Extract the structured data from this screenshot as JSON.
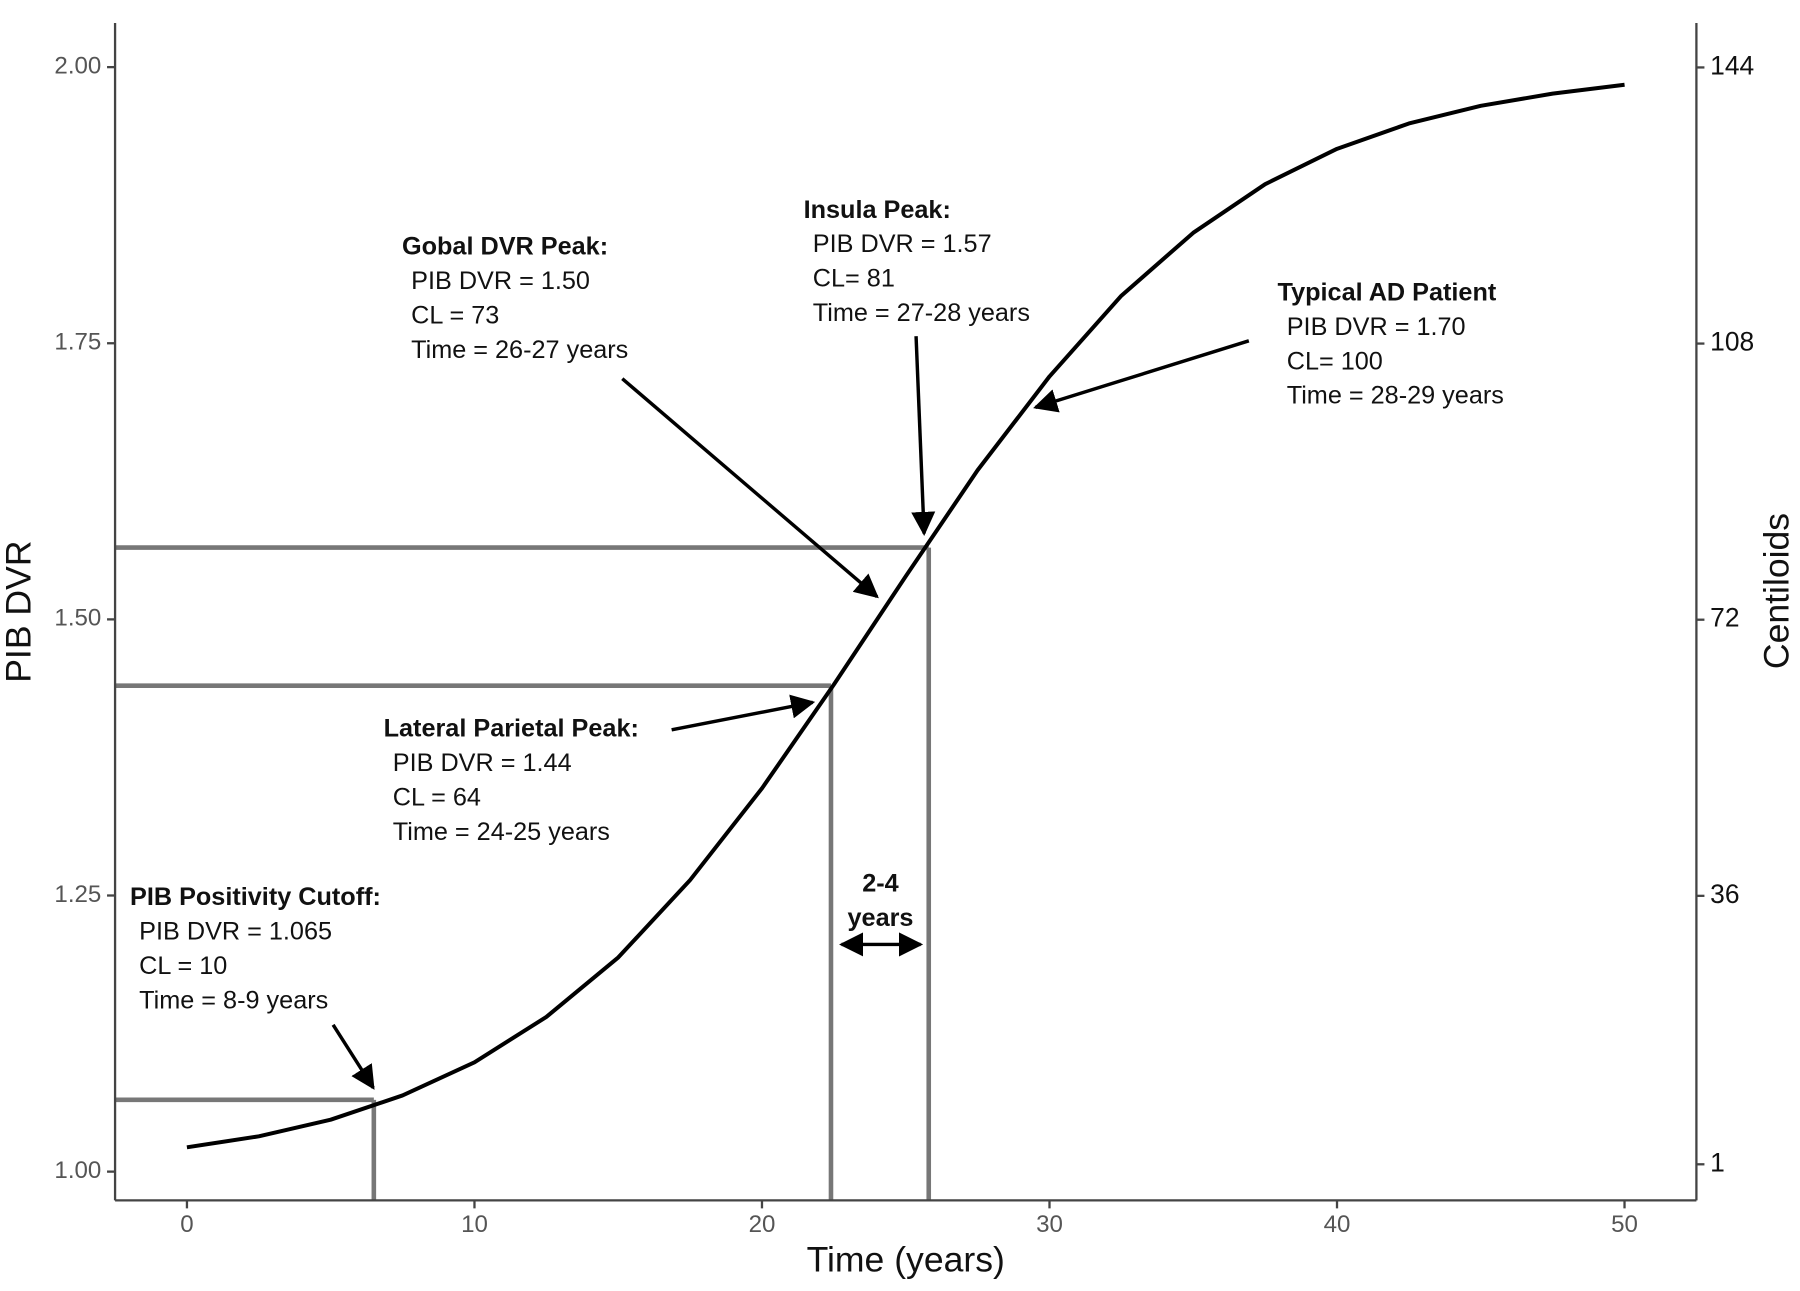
{
  "chart_data": {
    "type": "line",
    "x_label": "Time (years)",
    "y_label": "PIB DVR",
    "y2_label": "Centiloids",
    "x": [
      0,
      2.5,
      5,
      7.5,
      10,
      12.5,
      15,
      17.5,
      20,
      22.5,
      25,
      27.5,
      30,
      32.5,
      35,
      37.5,
      40,
      42.5,
      45,
      47.5,
      50
    ],
    "values": [
      1.022,
      1.032,
      1.047,
      1.069,
      1.099,
      1.14,
      1.194,
      1.264,
      1.347,
      1.441,
      1.539,
      1.635,
      1.72,
      1.793,
      1.85,
      1.894,
      1.926,
      1.949,
      1.965,
      1.976,
      1.984
    ],
    "color": "#000000",
    "xlim": [
      -2.5,
      52.5
    ],
    "xticks": [
      0,
      10,
      20,
      30,
      40,
      50
    ],
    "ylim": [
      0.974,
      2.04
    ],
    "yticks": [
      {
        "value": 1.0,
        "label": "1.00"
      },
      1.25,
      {
        "value": 1.5,
        "label": "1.50"
      },
      1.75,
      {
        "value": 2.0,
        "label": "2.00"
      }
    ],
    "y2lim": [
      -3.7,
      149.8
    ],
    "y2ticks": [
      1,
      36,
      72,
      108,
      144
    ],
    "reference_points": [
      {
        "x": 6.5,
        "y": 1.065
      },
      {
        "x": 22.4,
        "y": 1.44
      },
      {
        "x": 25.8,
        "y": 1.565
      }
    ],
    "reference_color": "#777777",
    "annotations": [
      {
        "lines": [
          "PIB Positivity Cutoff:",
          "PIB DVR = 1.065",
          "CL = 10",
          "Time = 8-9 years"
        ]
      },
      {
        "lines": [
          "Lateral Parietal Peak:",
          "PIB DVR = 1.44",
          "CL = 64",
          "Time = 24-25 years"
        ]
      },
      {
        "lines": [
          "Gobal DVR Peak:",
          "PIB DVR = 1.50",
          "CL = 73",
          "Time = 26-27 years"
        ]
      },
      {
        "lines": [
          "Insula Peak:",
          "PIB DVR = 1.57",
          "CL= 81",
          "Time = 27-28 years"
        ]
      },
      {
        "lines": [
          "Typical AD Patient",
          "PIB DVR = 1.70",
          "CL= 100",
          "Time = 28-29 years"
        ]
      }
    ],
    "span_label": [
      "2-4",
      "years"
    ]
  }
}
